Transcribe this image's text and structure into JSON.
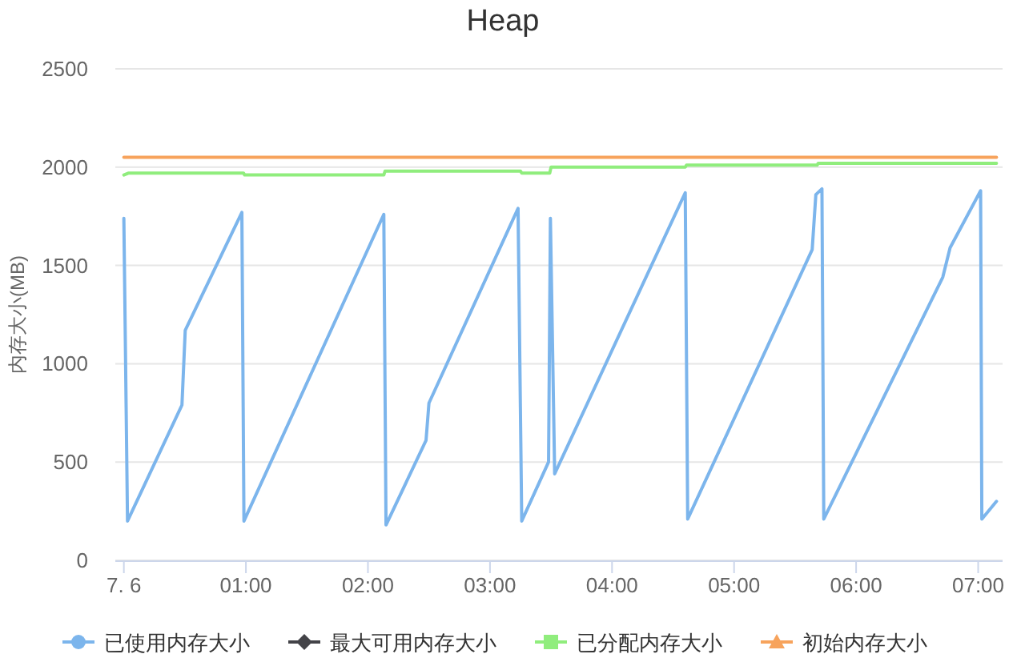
{
  "chart_data": {
    "type": "line",
    "title": "Heap",
    "ylabel": "内存大小(MB)",
    "xlim": [
      -0.07,
      7.2
    ],
    "xticks": [
      {
        "value": 0,
        "label": "7. 6"
      },
      {
        "value": 1,
        "label": "01:00"
      },
      {
        "value": 2,
        "label": "02:00"
      },
      {
        "value": 3,
        "label": "03:00"
      },
      {
        "value": 4,
        "label": "04:00"
      },
      {
        "value": 5,
        "label": "05:00"
      },
      {
        "value": 6,
        "label": "06:00"
      },
      {
        "value": 7,
        "label": "07:00"
      }
    ],
    "ylim": [
      0,
      2500
    ],
    "yticks": [
      0,
      500,
      1000,
      1500,
      2000,
      2500
    ],
    "grid": "y",
    "legend": "bottom",
    "series": [
      {
        "name": "已使用内存大小",
        "color": "#7cb5ec",
        "x": [
          0,
          0.03,
          0.476,
          0.503,
          0.967,
          0.984,
          2.13,
          2.148,
          2.476,
          2.5,
          3.23,
          3.26,
          3.48,
          3.495,
          3.53,
          4.6,
          4.62,
          5.64,
          5.67,
          5.72,
          5.735,
          6.71,
          6.77,
          7.02,
          7.03,
          7.15
        ],
        "values": [
          1740,
          200,
          790,
          1170,
          1770,
          200,
          1760,
          180,
          610,
          800,
          1790,
          200,
          500,
          1740,
          440,
          1870,
          210,
          1580,
          1860,
          1890,
          210,
          1440,
          1590,
          1880,
          210,
          300
        ]
      },
      {
        "name": "最大可用内存大小",
        "color": "#434348"
      },
      {
        "name": "已分配内存大小",
        "color": "#90ed7d",
        "x": [
          0,
          0.04,
          0.98,
          0.99,
          2.13,
          2.14,
          3.25,
          3.26,
          3.49,
          3.5,
          4.6,
          4.61,
          5.68,
          5.69,
          7.15
        ],
        "values": [
          1960,
          1970,
          1970,
          1960,
          1960,
          1980,
          1980,
          1970,
          1970,
          2000,
          2000,
          2010,
          2010,
          2020,
          2020
        ]
      },
      {
        "name": "初始内存大小",
        "color": "#f7a35c",
        "x": [
          0,
          7.15
        ],
        "values": [
          2050,
          2050
        ]
      }
    ]
  }
}
